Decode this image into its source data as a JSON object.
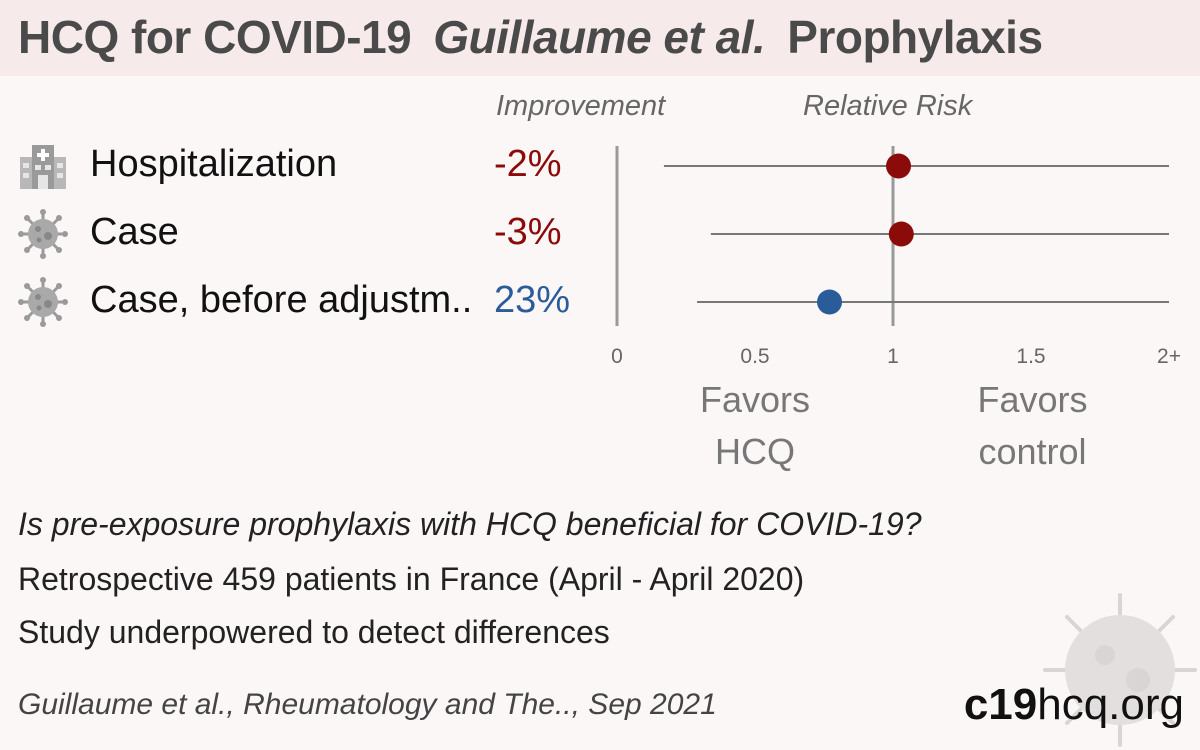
{
  "header": {
    "title": "HCQ for COVID-19",
    "study": "Guillaume et al.",
    "topic": "Prophylaxis"
  },
  "columns": {
    "improvement": "Improvement",
    "relative_risk": "Relative Risk"
  },
  "rows": [
    {
      "icon": "hospital-icon",
      "label": "Hospitalization",
      "improvement": "-2%",
      "color": "#8b0a0a"
    },
    {
      "icon": "virus-icon",
      "label": "Case",
      "improvement": "-3%",
      "color": "#8b0a0a"
    },
    {
      "icon": "virus-icon",
      "label": "Case, before adjustm..",
      "improvement": "23%",
      "color": "#2b5c9a"
    }
  ],
  "chart_data": {
    "type": "forest",
    "xlim": [
      0,
      2
    ],
    "xticks": [
      "0",
      "0.5",
      "1",
      "1.5",
      "2+"
    ],
    "reference_line": 1,
    "points": [
      {
        "label": "Hospitalization",
        "rr": 1.02,
        "ci": [
          0.17,
          2.0
        ],
        "color": "#8b0a0a"
      },
      {
        "label": "Case",
        "rr": 1.03,
        "ci": [
          0.34,
          2.0
        ],
        "color": "#8b0a0a"
      },
      {
        "label": "Case, before adjustm..",
        "rr": 0.77,
        "ci": [
          0.29,
          2.0
        ],
        "color": "#2b5c9a"
      }
    ],
    "favors_left": [
      "Favors",
      "HCQ"
    ],
    "favors_right": [
      "Favors",
      "control"
    ]
  },
  "description": {
    "question": "Is pre-exposure prophylaxis with HCQ beneficial for COVID-19?",
    "line1": "Retrospective 459 patients in France (April - April 2020)",
    "line2": "Study underpowered to detect differences"
  },
  "citation": "Guillaume et al., Rheumatology and The.., Sep 2021",
  "brand": {
    "bold": "c19",
    "rest": "hcq.org"
  }
}
